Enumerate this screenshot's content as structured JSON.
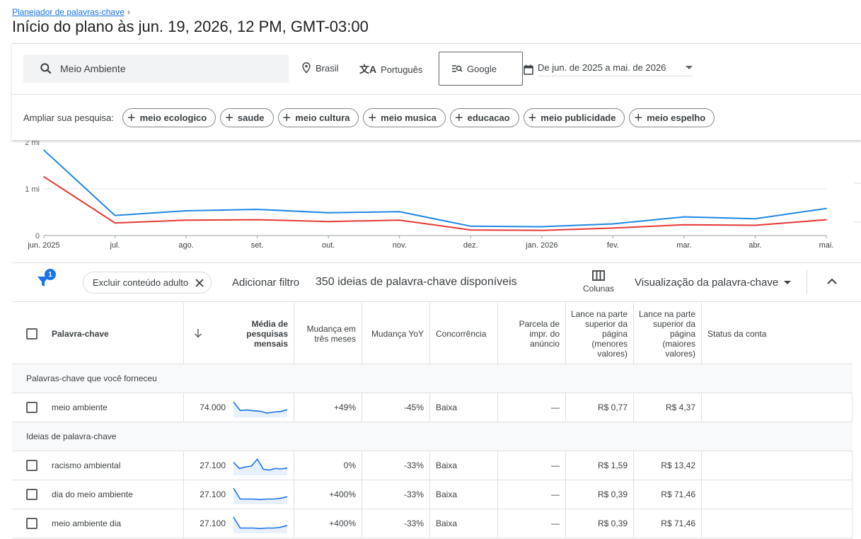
{
  "header": {
    "breadcrumb": "Planejador de palavras-chave",
    "title": "Início do plano às jun. 19, 2026, 12 PM, GMT-03:00"
  },
  "search": {
    "query": "Meio Ambiente",
    "location": "Brasil",
    "language": "Português",
    "engine": "Google",
    "date_range": "De jun. de 2025 a mai. de 2026",
    "refine_label": "Ampliar sua pesquisa:",
    "refine_chips": [
      "meio ecologico",
      "saude",
      "meio cultura",
      "meio musica",
      "educacao",
      "meio publicidade",
      "meio espelho"
    ]
  },
  "chart_data": {
    "type": "line",
    "categories": [
      "jun. 2025",
      "jul.",
      "ago.",
      "set.",
      "out.",
      "nov.",
      "dez.",
      "jan. 2026",
      "fev.",
      "mar.",
      "abr.",
      "mai."
    ],
    "y_ticks": [
      "0",
      "1 mi",
      "2 mi"
    ],
    "ylim": [
      0,
      2000000
    ],
    "series": [
      {
        "color": "#1e88e5",
        "values": [
          1830000,
          430000,
          530000,
          560000,
          490000,
          510000,
          200000,
          190000,
          250000,
          400000,
          360000,
          580000
        ]
      },
      {
        "color": "#e53935",
        "values": [
          1260000,
          270000,
          330000,
          340000,
          300000,
          330000,
          120000,
          110000,
          160000,
          230000,
          220000,
          340000
        ]
      }
    ],
    "grid": true
  },
  "toolbar": {
    "filter_badge": "1",
    "adult_filter": "Excluir conteúdo adulto",
    "add_filter": "Adicionar filtro",
    "ideas_count": "350 ideias de palavra-chave disponíveis",
    "columns": "Colunas",
    "view": "Visualização da palavra-chave"
  },
  "table": {
    "headers": {
      "keyword": "Palavra-chave",
      "avg_searches": "Média de pesquisas mensais",
      "three_month": "Mudança em três meses",
      "yoy": "Mudança YoY",
      "competition": "Concorrência",
      "impr_share": "Parcela de impr. do anúncio",
      "bid_low": "Lance na parte superior da página (menores valores)",
      "bid_high": "Lance na parte superior da página (maiores valores)",
      "account_status": "Status da conta"
    },
    "section_provided": "Palavras-chave que você forneceu",
    "section_ideas": "Ideias de palavra-chave",
    "provided_rows": [
      {
        "keyword": "meio ambiente",
        "avg": "74.000",
        "three_month": "+49%",
        "yoy": "-45%",
        "competition": "Baixa",
        "impr": "—",
        "bid_low": "R$ 0,77",
        "bid_high": "R$ 4,37",
        "trend": [
          0.9,
          0.35,
          0.38,
          0.33,
          0.3,
          0.18,
          0.25,
          0.28,
          0.4
        ]
      }
    ],
    "idea_rows": [
      {
        "keyword": "racismo ambiental",
        "avg": "27.100",
        "three_month": "0%",
        "yoy": "-33%",
        "competition": "Baixa",
        "impr": "—",
        "bid_low": "R$ 1,59",
        "bid_high": "R$ 13,42",
        "trend": [
          0.75,
          0.35,
          0.45,
          0.5,
          0.95,
          0.3,
          0.25,
          0.35,
          0.32,
          0.38
        ]
      },
      {
        "keyword": "dia do meio ambiente",
        "avg": "27.100",
        "three_month": "+400%",
        "yoy": "-33%",
        "competition": "Baixa",
        "impr": "—",
        "bid_low": "R$ 0,39",
        "bid_high": "R$ 71,46",
        "trend": [
          0.95,
          0.25,
          0.25,
          0.25,
          0.22,
          0.25,
          0.25,
          0.3,
          0.4
        ]
      },
      {
        "keyword": "meio ambiente dia",
        "avg": "27.100",
        "three_month": "+400%",
        "yoy": "-33%",
        "competition": "Baixa",
        "impr": "—",
        "bid_low": "R$ 0,39",
        "bid_high": "R$ 71,46",
        "trend": [
          0.95,
          0.25,
          0.25,
          0.25,
          0.22,
          0.25,
          0.25,
          0.3,
          0.42
        ]
      }
    ]
  }
}
